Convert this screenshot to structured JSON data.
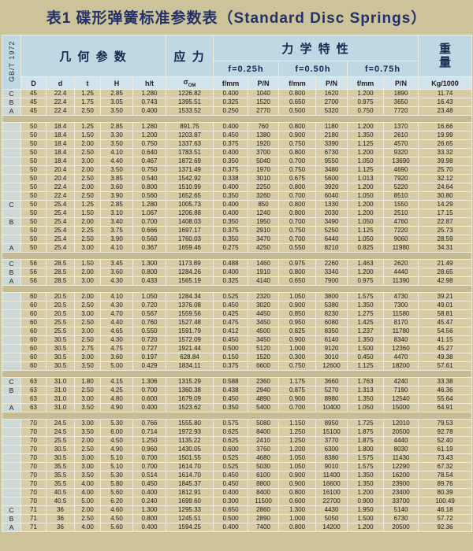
{
  "title": "表1 碟形弹簧标准参数表（Standard Disc Springs）",
  "standard": "GB/T 1972",
  "header": {
    "geometry": "几 何 参 数",
    "stress": "应 力",
    "mechanical": "力 学 特 性",
    "weight_top": "重",
    "weight_bottom": "量",
    "deflections": [
      "f=0.25h",
      "f=0.50h",
      "f=0.75h"
    ],
    "geo_cols": [
      "D",
      "d",
      "t",
      "H",
      "h/t"
    ],
    "sigma": "σ",
    "sigma_sub": "OM",
    "f_label": "f/mm",
    "p_label": "P/N",
    "weight_unit": "Kg/1000"
  },
  "colors": {
    "page_bg": "#cdc39b",
    "header_bg": "#bed8e4",
    "row_bg": "#d7cca5",
    "title_color": "#233069"
  },
  "rows": [
    [
      "C",
      "45",
      "22.4",
      "1.25",
      "2.85",
      "1.280",
      "1226.82",
      "0.400",
      "1040",
      "0.800",
      "1620",
      "1.200",
      "1890",
      "11.74"
    ],
    [
      "B",
      "45",
      "22.4",
      "1.75",
      "3.05",
      "0.743",
      "1395.51",
      "0.325",
      "1520",
      "0.650",
      "2700",
      "0.975",
      "3650",
      "16.43"
    ],
    [
      "A",
      "45",
      "22.4",
      "2.50",
      "3.50",
      "0.400",
      "1533.52",
      "0.250",
      "2770",
      "0.500",
      "5320",
      "0.750",
      "7720",
      "23.48"
    ],
    [],
    [
      "",
      "50",
      "18.4",
      "1.25",
      "2.85",
      "1.280",
      "891.75",
      "0.400",
      "760",
      "0.800",
      "1180",
      "1.200",
      "1370",
      "16.66"
    ],
    [
      "",
      "50",
      "18.4",
      "1.50",
      "3.30",
      "1.200",
      "1203.87",
      "0.450",
      "1380",
      "0.900",
      "2180",
      "1.350",
      "2610",
      "19.99"
    ],
    [
      "",
      "50",
      "18.4",
      "2.00",
      "3.50",
      "0.750",
      "1337.63",
      "0.375",
      "1920",
      "0.750",
      "3390",
      "1.125",
      "4570",
      "26.65"
    ],
    [
      "",
      "50",
      "18.4",
      "2.50",
      "4.10",
      "0.640",
      "1783.51",
      "0.400",
      "3700",
      "0.800",
      "6730",
      "1.200",
      "9320",
      "33.32"
    ],
    [
      "",
      "50",
      "18.4",
      "3.00",
      "4.40",
      "0.467",
      "1872.69",
      "0.350",
      "5040",
      "0.700",
      "9550",
      "1.050",
      "13690",
      "39.98"
    ],
    [
      "",
      "50",
      "20.4",
      "2.00",
      "3.50",
      "0.750",
      "1371.49",
      "0.375",
      "1970",
      "0.750",
      "3480",
      "1.125",
      "4690",
      "25.70"
    ],
    [
      "",
      "50",
      "20.4",
      "2.50",
      "3.85",
      "0.540",
      "1542.92",
      "0.338",
      "3010",
      "0.675",
      "5600",
      "1.013",
      "7920",
      "32.12"
    ],
    [
      "",
      "50",
      "22.4",
      "2.00",
      "3.60",
      "0.800",
      "1510.99",
      "0.400",
      "2250",
      "0.800",
      "3920",
      "1.200",
      "5220",
      "24.64"
    ],
    [
      "",
      "50",
      "22.4",
      "2.50",
      "3.90",
      "0.560",
      "1652.65",
      "0.350",
      "3260",
      "0.700",
      "6040",
      "1.050",
      "8510",
      "30.80"
    ],
    [
      "C",
      "50",
      "25.4",
      "1.25",
      "2.85",
      "1.280",
      "1005.73",
      "0.400",
      "850",
      "0.800",
      "1330",
      "1.200",
      "1550",
      "14.29"
    ],
    [
      "",
      "50",
      "25.4",
      "1.50",
      "3.10",
      "1.067",
      "1206.88",
      "0.400",
      "1240",
      "0.800",
      "2030",
      "1.200",
      "2510",
      "17.15"
    ],
    [
      "B",
      "50",
      "25.4",
      "2.00",
      "3.40",
      "0.700",
      "1408.03",
      "0.350",
      "1950",
      "0.700",
      "3490",
      "1.050",
      "4760",
      "22.87"
    ],
    [
      "",
      "50",
      "25.4",
      "2.25",
      "3.75",
      "0.666",
      "1697.17",
      "0.375",
      "2910",
      "0.750",
      "5250",
      "1.125",
      "7220",
      "25.73"
    ],
    [
      "",
      "50",
      "25.4",
      "2.50",
      "3.90",
      "0.560",
      "1760.03",
      "0.350",
      "3470",
      "0.700",
      "6440",
      "1.050",
      "9060",
      "28.59"
    ],
    [
      "A",
      "50",
      "25.4",
      "3.00",
      "4.10",
      "0.367",
      "1659.46",
      "0.275",
      "4250",
      "0.550",
      "8210",
      "0.825",
      "11980",
      "34.31"
    ],
    [],
    [
      "C",
      "56",
      "28.5",
      "1.50",
      "3.45",
      "1.300",
      "1173.89",
      "0.488",
      "1460",
      "0.975",
      "2260",
      "1.463",
      "2620",
      "21.49"
    ],
    [
      "B",
      "56",
      "28.5",
      "2.00",
      "3.60",
      "0.800",
      "1284.26",
      "0.400",
      "1910",
      "0.800",
      "3340",
      "1.200",
      "4440",
      "28.65"
    ],
    [
      "A",
      "56",
      "28.5",
      "3.00",
      "4.30",
      "0.433",
      "1565.19",
      "0.325",
      "4140",
      "0.650",
      "7900",
      "0.975",
      "11390",
      "42.98"
    ],
    [],
    [
      "",
      "60",
      "20.5",
      "2.00",
      "4.10",
      "1.050",
      "1284.34",
      "0.525",
      "2320",
      "1.050",
      "3800",
      "1.575",
      "4730",
      "39.21"
    ],
    [
      "",
      "60",
      "20.5",
      "2.50",
      "4.30",
      "0.720",
      "1376.08",
      "0.450",
      "3020",
      "0.900",
      "5380",
      "1.350",
      "7300",
      "49.01"
    ],
    [
      "",
      "60",
      "20.5",
      "3.00",
      "4.70",
      "0.567",
      "1559.56",
      "0.425",
      "4450",
      "0.850",
      "8230",
      "1.275",
      "11580",
      "58.81"
    ],
    [
      "",
      "60",
      "25.5",
      "2.50",
      "4.40",
      "0.760",
      "1527.48",
      "0.475",
      "3450",
      "0.950",
      "6080",
      "1.425",
      "8170",
      "45.47"
    ],
    [
      "",
      "60",
      "25.5",
      "3.00",
      "4.65",
      "0.550",
      "1591.79",
      "0.412",
      "4500",
      "0.825",
      "8350",
      "1.237",
      "11780",
      "54.56"
    ],
    [
      "",
      "60",
      "30.5",
      "2.50",
      "4.30",
      "0.720",
      "1572.09",
      "0.450",
      "3450",
      "0.900",
      "6140",
      "1.350",
      "8340",
      "41.15"
    ],
    [
      "",
      "60",
      "30.5",
      "2.75",
      "4.75",
      "0.727",
      "1921.44",
      "0.500",
      "5120",
      "1.000",
      "9120",
      "1.500",
      "12360",
      "45.27"
    ],
    [
      "",
      "60",
      "30.5",
      "3.00",
      "3.60",
      "0.197",
      "628.84",
      "0.150",
      "1520",
      "0.300",
      "3010",
      "0.450",
      "4470",
      "49.38"
    ],
    [
      "",
      "60",
      "30.5",
      "3.50",
      "5.00",
      "0.429",
      "1834.11",
      "0.375",
      "6600",
      "0.750",
      "12600",
      "1.125",
      "18200",
      "57.61"
    ],
    [],
    [
      "C",
      "63",
      "31.0",
      "1.80",
      "4.15",
      "1.306",
      "1315.29",
      "0.588",
      "2360",
      "1.175",
      "3660",
      "1.763",
      "4240",
      "33.38"
    ],
    [
      "B",
      "63",
      "31.0",
      "2.50",
      "4.25",
      "0.700",
      "1360.38",
      "0.438",
      "2940",
      "0.875",
      "5270",
      "1.313",
      "7190",
      "46.36"
    ],
    [
      "",
      "63",
      "31.0",
      "3.00",
      "4.80",
      "0.600",
      "1679.09",
      "0.450",
      "4890",
      "0.900",
      "8980",
      "1.350",
      "12540",
      "55.64"
    ],
    [
      "A",
      "63",
      "31.0",
      "3.50",
      "4.90",
      "0.400",
      "1523.62",
      "0.350",
      "5400",
      "0.700",
      "10400",
      "1.050",
      "15000",
      "64.91"
    ],
    [],
    [
      "",
      "70",
      "24.5",
      "3.00",
      "5.30",
      "0.766",
      "1555.80",
      "0.575",
      "5080",
      "1.150",
      "8950",
      "1.725",
      "12010",
      "79.53"
    ],
    [
      "",
      "70",
      "24.5",
      "3.50",
      "6.00",
      "0.714",
      "1972.93",
      "0.625",
      "8400",
      "1.250",
      "15100",
      "1.875",
      "20500",
      "92.78"
    ],
    [
      "",
      "70",
      "25.5",
      "2.00",
      "4.50",
      "1.250",
      "1135.22",
      "0.625",
      "2410",
      "1.250",
      "3770",
      "1.875",
      "4440",
      "52.40"
    ],
    [
      "",
      "70",
      "30.5",
      "2.50",
      "4.90",
      "0.960",
      "1430.05",
      "0.600",
      "3760",
      "1.200",
      "6300",
      "1.800",
      "8030",
      "61.19"
    ],
    [
      "",
      "70",
      "30.5",
      "3.00",
      "5.10",
      "0.700",
      "1501.55",
      "0.525",
      "4680",
      "1.050",
      "8380",
      "1.575",
      "11430",
      "73.43"
    ],
    [
      "",
      "70",
      "35.5",
      "3.00",
      "5.10",
      "0.700",
      "1614.70",
      "0.525",
      "5030",
      "1.050",
      "9010",
      "1.575",
      "12290",
      "67.32"
    ],
    [
      "",
      "70",
      "35.5",
      "3.50",
      "5.30",
      "0.514",
      "1614.70",
      "0.450",
      "6100",
      "0.900",
      "11400",
      "1.350",
      "16200",
      "78.54"
    ],
    [
      "",
      "70",
      "35.5",
      "4.00",
      "5.80",
      "0.450",
      "1845.37",
      "0.450",
      "8800",
      "0.900",
      "16600",
      "1.350",
      "23900",
      "89.76"
    ],
    [
      "",
      "70",
      "40.5",
      "4.00",
      "5.60",
      "0.400",
      "1812.91",
      "0.400",
      "8400",
      "0.800",
      "16100",
      "1.200",
      "23400",
      "80.39"
    ],
    [
      "",
      "70",
      "40.5",
      "5.00",
      "6.20",
      "0.240",
      "1699.60",
      "0.300",
      "11500",
      "0.600",
      "22700",
      "0.900",
      "33700",
      "100.49"
    ],
    [
      "C",
      "71",
      "36",
      "2.00",
      "4.60",
      "1.300",
      "1295.33",
      "0.650",
      "2860",
      "1.300",
      "4430",
      "1.950",
      "5140",
      "46.18"
    ],
    [
      "B",
      "71",
      "36",
      "2.50",
      "4.50",
      "0.800",
      "1245.51",
      "0.500",
      "2890",
      "1.000",
      "5050",
      "1.500",
      "6730",
      "57.72"
    ],
    [
      "A",
      "71",
      "36",
      "4.00",
      "5.60",
      "0.400",
      "1594.25",
      "0.400",
      "7400",
      "0.800",
      "14200",
      "1.200",
      "20500",
      "92.36"
    ]
  ]
}
